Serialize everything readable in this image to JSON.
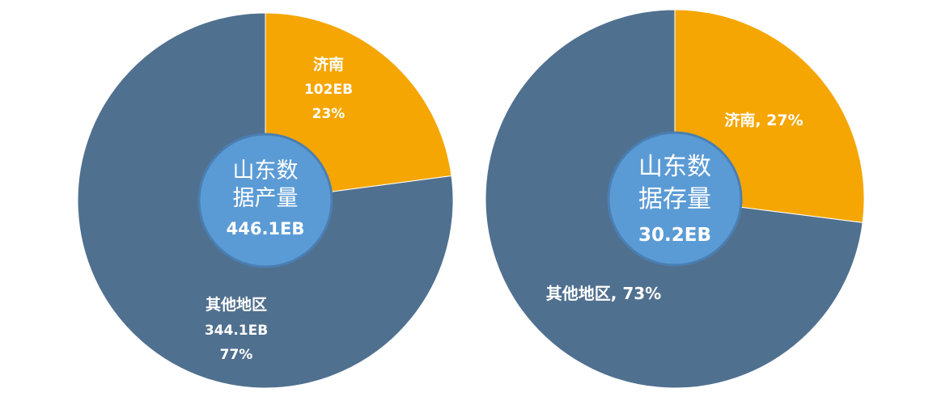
{
  "colors": {
    "jinan": "#F5A602",
    "others": "#50708F",
    "center": "#5B9BD5",
    "center_stroke": "#4A7FB3",
    "text": "#FFFFFF"
  },
  "chart_data": [
    {
      "type": "pie",
      "center_label": {
        "line1": "山东数",
        "line2": "据产量",
        "value": "446.1EB"
      },
      "slices": [
        {
          "name": "济南",
          "value_label": "102EB",
          "percent_label": "23%",
          "percent": 22.9
        },
        {
          "name": "其他地区",
          "value_label": "344.1EB",
          "percent_label": "77%",
          "percent": 77.1
        }
      ]
    },
    {
      "type": "pie",
      "center_label": {
        "line1": "山东数",
        "line2": "据存量",
        "value": "30.2EB"
      },
      "slices": [
        {
          "name": "济南",
          "label": "济南, 27%",
          "percent": 27
        },
        {
          "name": "其他地区",
          "label": "其他地区, 73%",
          "percent": 73
        }
      ]
    }
  ]
}
